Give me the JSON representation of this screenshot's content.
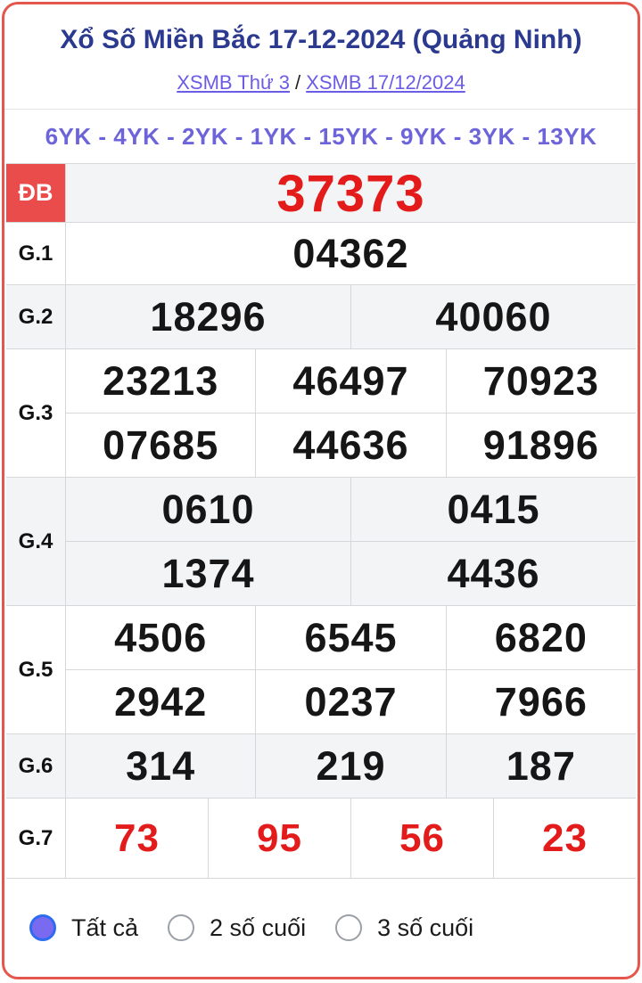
{
  "header": {
    "title": "Xổ Số Miền Bắc 17-12-2024 (Quảng Ninh)",
    "link_day": "XSMB Thứ 3",
    "separator": "/",
    "link_date": "XSMB 17/12/2024",
    "codes": "6YK - 4YK - 2YK - 1YK - 15YK - 9YK - 3YK - 13YK"
  },
  "colors": {
    "title_navy": "#2b3a8f",
    "link_purple": "#6b5ce6",
    "codes_purple": "#6d64da",
    "card_border_red": "#e4574e",
    "badge_red": "#e94c4b",
    "number_red": "#e31b1b",
    "row_alt_gray": "#f3f4f6",
    "grid_gray": "#d5d7da",
    "radio_selected_fill": "#7a6af0",
    "radio_selected_ring": "#2e6bf0"
  },
  "results": {
    "rows": [
      {
        "label": "ĐB",
        "special": true,
        "red": true,
        "lines": [
          [
            "37373"
          ]
        ]
      },
      {
        "label": "G.1",
        "special": false,
        "red": false,
        "lines": [
          [
            "04362"
          ]
        ]
      },
      {
        "label": "G.2",
        "special": false,
        "red": false,
        "lines": [
          [
            "18296",
            "40060"
          ]
        ]
      },
      {
        "label": "G.3",
        "special": false,
        "red": false,
        "lines": [
          [
            "23213",
            "46497",
            "70923"
          ],
          [
            "07685",
            "44636",
            "91896"
          ]
        ]
      },
      {
        "label": "G.4",
        "special": false,
        "red": false,
        "lines": [
          [
            "0610",
            "0415"
          ],
          [
            "1374",
            "4436"
          ]
        ]
      },
      {
        "label": "G.5",
        "special": false,
        "red": false,
        "lines": [
          [
            "4506",
            "6545",
            "6820"
          ],
          [
            "2942",
            "0237",
            "7966"
          ]
        ]
      },
      {
        "label": "G.6",
        "special": false,
        "red": false,
        "lines": [
          [
            "314",
            "219",
            "187"
          ]
        ]
      },
      {
        "label": "G.7",
        "special": false,
        "red": true,
        "lines": [
          [
            "73",
            "95",
            "56",
            "23"
          ]
        ]
      }
    ]
  },
  "filters": [
    {
      "label": "Tất cả",
      "selected": true
    },
    {
      "label": "2 số cuối",
      "selected": false
    },
    {
      "label": "3 số cuối",
      "selected": false
    }
  ]
}
